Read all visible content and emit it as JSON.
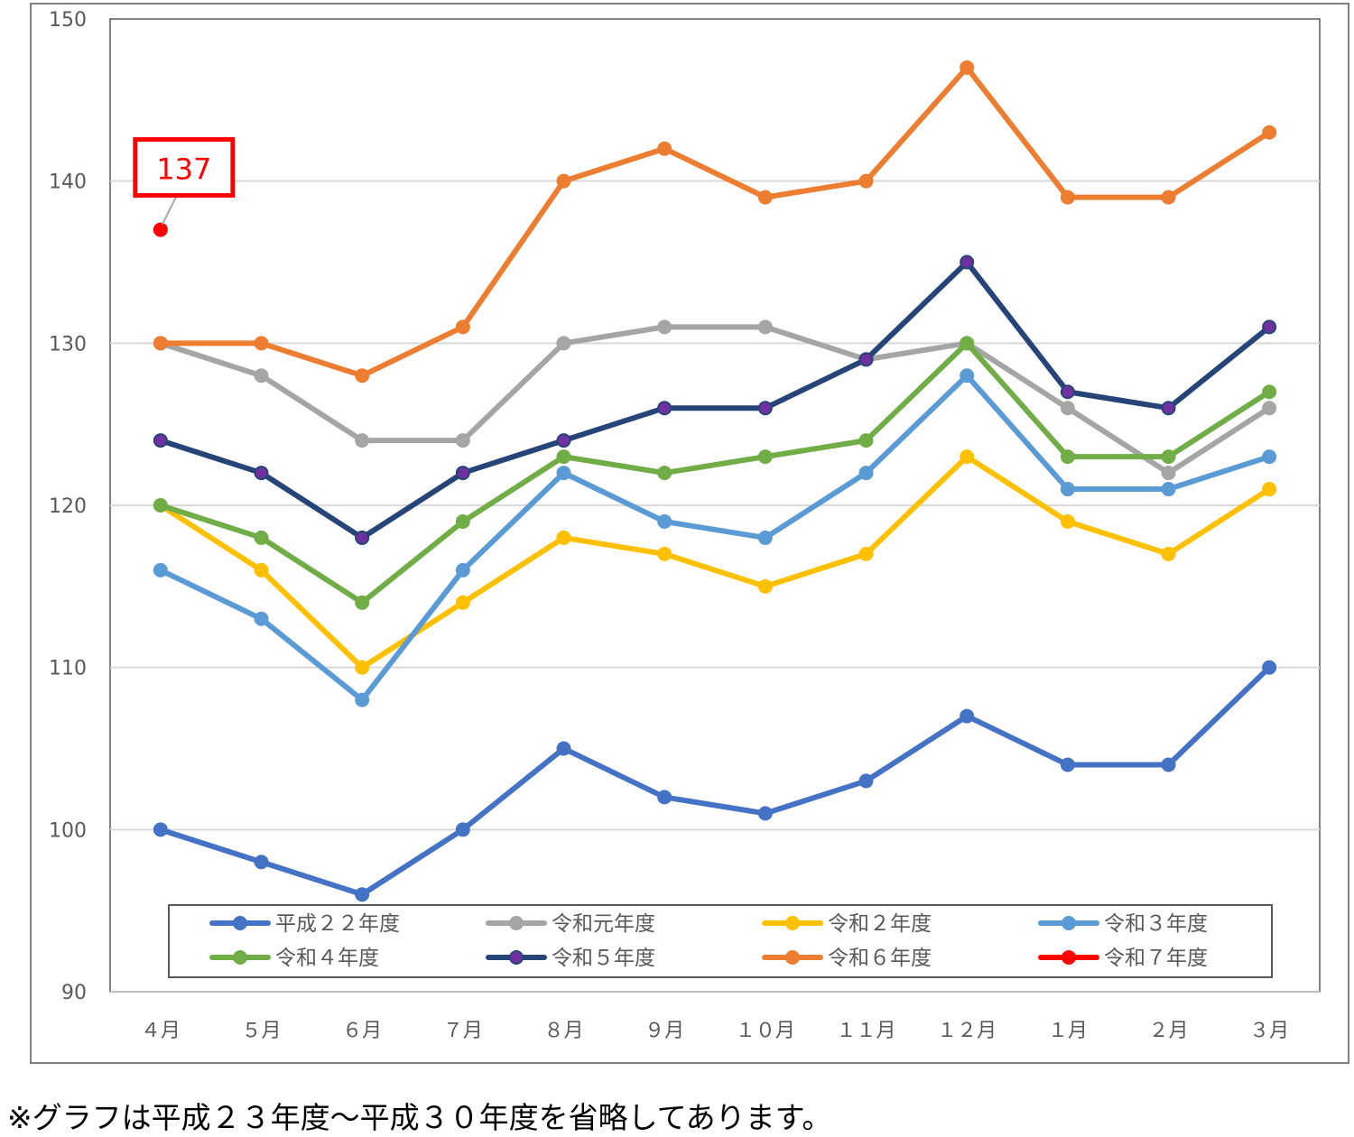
{
  "chart_data": {
    "type": "line",
    "categories": [
      "４月",
      "５月",
      "６月",
      "７月",
      "８月",
      "９月",
      "１０月",
      "１１月",
      "１２月",
      "１月",
      "２月",
      "３月"
    ],
    "ylim": [
      90,
      150
    ],
    "yticks": [
      90,
      100,
      110,
      120,
      130,
      140,
      150
    ],
    "grid": true,
    "legend_position": "bottom-inside",
    "series": [
      {
        "name": "平成２２年度",
        "color": "#4472c4",
        "values": [
          100,
          98,
          96,
          100,
          105,
          102,
          101,
          103,
          107,
          104,
          104,
          110
        ]
      },
      {
        "name": "令和元年度",
        "color": "#a5a5a5",
        "values": [
          130,
          128,
          124,
          124,
          130,
          131,
          131,
          129,
          130,
          126,
          122,
          126
        ]
      },
      {
        "name": "令和２年度",
        "color": "#ffc000",
        "values": [
          120,
          116,
          110,
          114,
          118,
          117,
          115,
          117,
          123,
          119,
          117,
          121
        ]
      },
      {
        "name": "令和３年度",
        "color": "#5b9bd5",
        "values": [
          116,
          113,
          108,
          116,
          122,
          119,
          118,
          122,
          128,
          121,
          121,
          123
        ]
      },
      {
        "name": "令和４年度",
        "color": "#70ad47",
        "values": [
          120,
          118,
          114,
          119,
          123,
          122,
          123,
          124,
          130,
          123,
          123,
          127
        ]
      },
      {
        "name": "令和５年度",
        "color": "#264478",
        "marker_color": "#7030a0",
        "values": [
          124,
          122,
          118,
          122,
          124,
          126,
          126,
          129,
          135,
          127,
          126,
          131
        ]
      },
      {
        "name": "令和６年度",
        "color": "#ed7d31",
        "values": [
          130,
          130,
          128,
          131,
          140,
          142,
          139,
          140,
          147,
          139,
          139,
          143
        ]
      },
      {
        "name": "令和７年度",
        "color": "#ff0000",
        "values": [
          137,
          null,
          null,
          null,
          null,
          null,
          null,
          null,
          null,
          null,
          null,
          null
        ]
      }
    ],
    "annotations": [
      {
        "text": "137",
        "series": "令和７年度",
        "category": "４月",
        "color": "#ff0000"
      }
    ]
  },
  "footnote": "※グラフは平成２３年度～平成３０年度を省略してあります。"
}
